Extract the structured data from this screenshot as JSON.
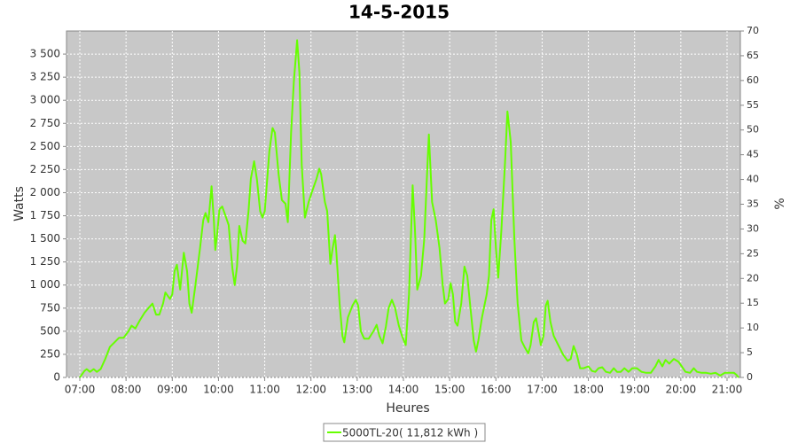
{
  "chart_data": {
    "type": "line",
    "title": "14-5-2015",
    "x_label": "Heures",
    "y_label": "Watts",
    "y2_label": "%",
    "x": [
      7.0,
      7.1,
      7.15,
      7.22,
      7.3,
      7.37,
      7.45,
      7.55,
      7.65,
      7.75,
      7.85,
      7.95,
      8.05,
      8.12,
      8.2,
      8.3,
      8.4,
      8.5,
      8.57,
      8.65,
      8.72,
      8.8,
      8.85,
      8.95,
      9.0,
      9.05,
      9.1,
      9.17,
      9.25,
      9.32,
      9.37,
      9.42,
      9.5,
      9.6,
      9.67,
      9.72,
      9.78,
      9.85,
      9.9,
      9.93,
      9.97,
      10.02,
      10.08,
      10.15,
      10.22,
      10.3,
      10.35,
      10.4,
      10.45,
      10.52,
      10.58,
      10.65,
      10.7,
      10.77,
      10.83,
      10.9,
      10.95,
      11.0,
      11.1,
      11.17,
      11.22,
      11.3,
      11.37,
      11.45,
      11.5,
      11.57,
      11.63,
      11.7,
      11.75,
      11.8,
      11.87,
      11.95,
      12.05,
      12.12,
      12.18,
      12.22,
      12.3,
      12.35,
      12.42,
      12.47,
      12.52,
      12.55,
      12.62,
      12.68,
      12.72,
      12.8,
      12.9,
      12.97,
      13.02,
      13.08,
      13.15,
      13.25,
      13.35,
      13.42,
      13.48,
      13.55,
      13.62,
      13.68,
      13.75,
      13.82,
      13.9,
      13.97,
      14.05,
      14.12,
      14.2,
      14.25,
      14.3,
      14.38,
      14.45,
      14.52,
      14.55,
      14.62,
      14.7,
      14.78,
      14.85,
      14.9,
      14.97,
      15.02,
      15.07,
      15.12,
      15.17,
      15.25,
      15.32,
      15.38,
      15.45,
      15.52,
      15.57,
      15.62,
      15.7,
      15.8,
      15.85,
      15.9,
      15.95,
      16.0,
      16.05,
      16.12,
      16.2,
      16.25,
      16.32,
      16.4,
      16.47,
      16.55,
      16.62,
      16.7,
      16.75,
      16.82,
      16.87,
      16.92,
      16.97,
      17.03,
      17.08,
      17.12,
      17.18,
      17.25,
      17.35,
      17.45,
      17.55,
      17.62,
      17.68,
      17.75,
      17.82,
      17.9,
      18.0,
      18.08,
      18.15,
      18.22,
      18.3,
      18.38,
      18.47,
      18.55,
      18.62,
      18.7,
      18.78,
      18.87,
      18.95,
      19.05,
      19.15,
      19.25,
      19.35,
      19.45,
      19.52,
      19.6,
      19.67,
      19.75,
      19.85,
      19.95,
      20.02,
      20.1,
      20.2,
      20.28,
      20.35,
      20.45,
      20.55,
      20.65,
      20.75,
      20.85,
      20.95,
      21.05,
      21.15,
      21.2,
      21.25
    ],
    "series": [
      {
        "name": "5000TL-20( 11,812 kWh )",
        "color": "#66ff00",
        "values": [
          0,
          70,
          90,
          60,
          90,
          60,
          90,
          200,
          330,
          380,
          430,
          430,
          500,
          560,
          530,
          620,
          700,
          760,
          800,
          680,
          680,
          800,
          920,
          850,
          900,
          1150,
          1220,
          950,
          1350,
          1150,
          800,
          700,
          1000,
          1400,
          1700,
          1780,
          1680,
          2070,
          1700,
          1380,
          1550,
          1820,
          1850,
          1750,
          1650,
          1180,
          1000,
          1200,
          1640,
          1480,
          1450,
          1800,
          2150,
          2340,
          2150,
          1800,
          1730,
          1800,
          2450,
          2700,
          2650,
          2200,
          1920,
          1880,
          1680,
          2650,
          3200,
          3650,
          3300,
          2300,
          1730,
          1900,
          2050,
          2150,
          2260,
          2200,
          1900,
          1800,
          1230,
          1400,
          1540,
          1350,
          800,
          450,
          380,
          650,
          780,
          840,
          780,
          500,
          420,
          420,
          500,
          570,
          450,
          370,
          550,
          750,
          840,
          750,
          560,
          450,
          350,
          900,
          2080,
          1600,
          950,
          1100,
          1500,
          2300,
          2630,
          1900,
          1700,
          1400,
          1000,
          800,
          850,
          1020,
          900,
          600,
          560,
          800,
          1200,
          1100,
          750,
          400,
          280,
          400,
          650,
          900,
          1100,
          1700,
          1820,
          1400,
          1080,
          1600,
          2350,
          2880,
          2550,
          1500,
          800,
          400,
          330,
          260,
          350,
          600,
          640,
          500,
          350,
          450,
          780,
          830,
          600,
          450,
          350,
          250,
          180,
          200,
          340,
          250,
          100,
          100,
          120,
          70,
          60,
          100,
          110,
          60,
          50,
          100,
          60,
          60,
          100,
          60,
          100,
          100,
          60,
          50,
          50,
          120,
          190,
          120,
          190,
          150,
          200,
          170,
          120,
          60,
          50,
          100,
          60,
          50,
          50,
          40,
          50,
          20,
          50,
          50,
          50,
          30,
          0
        ]
      }
    ],
    "xlim": [
      6.712,
      21.288
    ],
    "xticks": [
      {
        "value": 7,
        "label": "07:00"
      },
      {
        "value": 8,
        "label": "08:00"
      },
      {
        "value": 9,
        "label": "09:00"
      },
      {
        "value": 10,
        "label": "10:00"
      },
      {
        "value": 11,
        "label": "11:00"
      },
      {
        "value": 12,
        "label": "12:00"
      },
      {
        "value": 13,
        "label": "13:00"
      },
      {
        "value": 14,
        "label": "14:00"
      },
      {
        "value": 15,
        "label": "15:00"
      },
      {
        "value": 16,
        "label": "16:00"
      },
      {
        "value": 17,
        "label": "17:00"
      },
      {
        "value": 18,
        "label": "18:00"
      },
      {
        "value": 19,
        "label": "19:00"
      },
      {
        "value": 20,
        "label": "20:00"
      },
      {
        "value": 21,
        "label": "21:00"
      }
    ],
    "ylim": [
      0,
      3750
    ],
    "yticks": [
      0,
      250,
      500,
      750,
      {
        "value": 1000,
        "label": "1 000"
      },
      {
        "value": 1250,
        "label": "1 250"
      },
      {
        "value": 1500,
        "label": "1 500"
      },
      {
        "value": 1750,
        "label": "1 750"
      },
      {
        "value": 2000,
        "label": "2 000"
      },
      {
        "value": 2250,
        "label": "2 250"
      },
      {
        "value": 2500,
        "label": "2 500"
      },
      {
        "value": 2750,
        "label": "2 750"
      },
      {
        "value": 3000,
        "label": "3 000"
      },
      {
        "value": 3250,
        "label": "3 250"
      },
      {
        "value": 3500,
        "label": "3 500"
      }
    ],
    "y2lim": [
      0,
      70
    ],
    "y2ticks": [
      0,
      5,
      10,
      15,
      20,
      25,
      30,
      35,
      40,
      45,
      50,
      55,
      60,
      65,
      70
    ],
    "grid": true,
    "background": "#c8c8c8",
    "legend": "bottom"
  }
}
